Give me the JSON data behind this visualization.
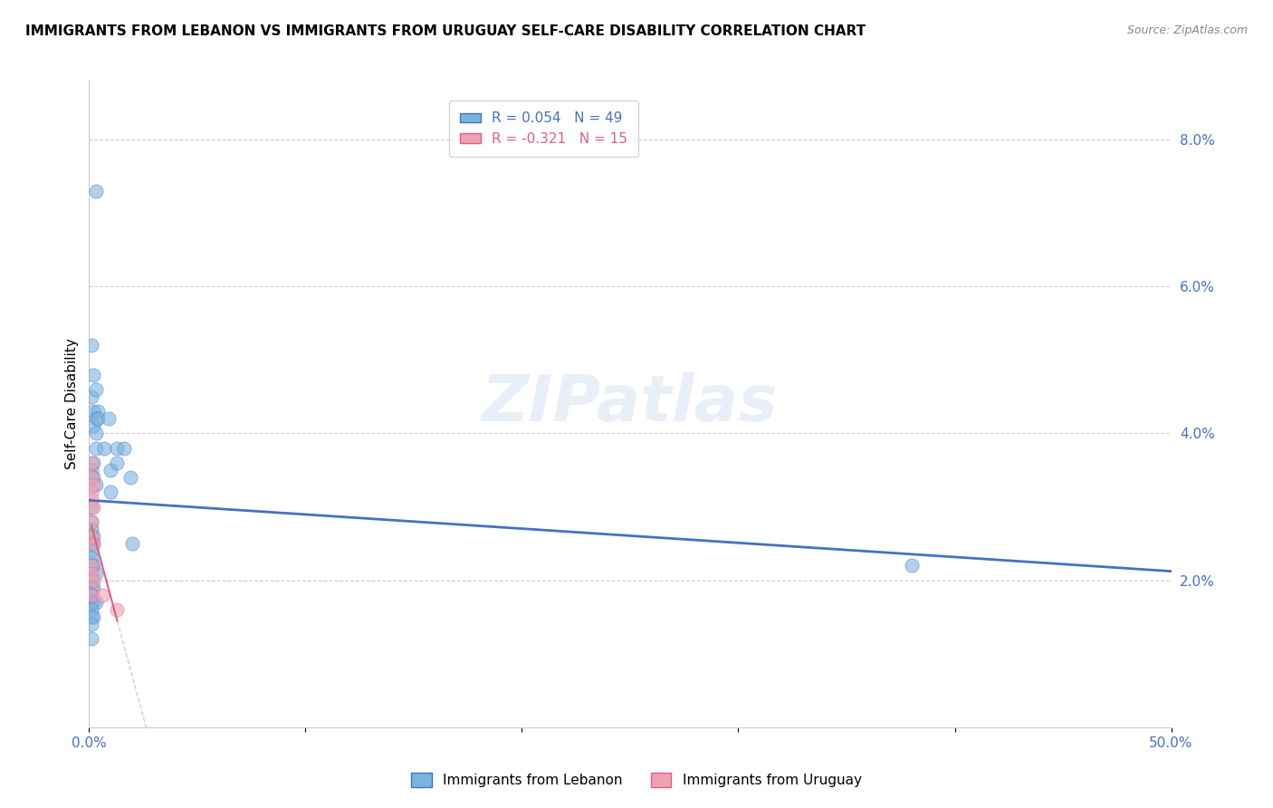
{
  "title": "IMMIGRANTS FROM LEBANON VS IMMIGRANTS FROM URUGUAY SELF-CARE DISABILITY CORRELATION CHART",
  "source": "Source: ZipAtlas.com",
  "ylabel": "Self-Care Disability",
  "xlim": [
    0.0,
    0.5
  ],
  "ylim": [
    0.0,
    0.088
  ],
  "xticks": [
    0.0,
    0.1,
    0.2,
    0.3,
    0.4,
    0.5
  ],
  "xtick_labels": [
    "0.0%",
    "",
    "",
    "",
    "",
    "50.0%"
  ],
  "yticks": [
    0.0,
    0.02,
    0.04,
    0.06,
    0.08
  ],
  "ytick_labels": [
    "",
    "2.0%",
    "4.0%",
    "6.0%",
    "8.0%"
  ],
  "lebanon_color": "#7ab3e0",
  "uruguay_color": "#f0a0b0",
  "trendline_lebanon_color": "#4472c4",
  "trendline_uruguay_color": "#e06080",
  "grid_color": "#cccccc",
  "watermark": "ZIPatlas",
  "lebanon_points": [
    [
      0.001,
      0.052
    ],
    [
      0.002,
      0.043
    ],
    [
      0.003,
      0.073
    ],
    [
      0.001,
      0.045
    ],
    [
      0.002,
      0.048
    ],
    [
      0.003,
      0.046
    ],
    [
      0.003,
      0.042
    ],
    [
      0.002,
      0.041
    ],
    [
      0.004,
      0.043
    ],
    [
      0.003,
      0.038
    ],
    [
      0.003,
      0.04
    ],
    [
      0.002,
      0.036
    ],
    [
      0.001,
      0.035
    ],
    [
      0.002,
      0.034
    ],
    [
      0.003,
      0.033
    ],
    [
      0.004,
      0.042
    ],
    [
      0.001,
      0.03
    ],
    [
      0.001,
      0.028
    ],
    [
      0.001,
      0.027
    ],
    [
      0.002,
      0.026
    ],
    [
      0.001,
      0.025
    ],
    [
      0.002,
      0.025
    ],
    [
      0.001,
      0.024
    ],
    [
      0.001,
      0.023
    ],
    [
      0.001,
      0.022
    ],
    [
      0.002,
      0.022
    ],
    [
      0.003,
      0.021
    ],
    [
      0.001,
      0.02
    ],
    [
      0.001,
      0.019
    ],
    [
      0.002,
      0.019
    ],
    [
      0.001,
      0.018
    ],
    [
      0.001,
      0.017
    ],
    [
      0.002,
      0.017
    ],
    [
      0.003,
      0.017
    ],
    [
      0.001,
      0.016
    ],
    [
      0.001,
      0.015
    ],
    [
      0.002,
      0.015
    ],
    [
      0.001,
      0.014
    ],
    [
      0.007,
      0.038
    ],
    [
      0.009,
      0.042
    ],
    [
      0.01,
      0.035
    ],
    [
      0.01,
      0.032
    ],
    [
      0.013,
      0.038
    ],
    [
      0.013,
      0.036
    ],
    [
      0.016,
      0.038
    ],
    [
      0.019,
      0.034
    ],
    [
      0.02,
      0.025
    ],
    [
      0.38,
      0.022
    ],
    [
      0.001,
      0.012
    ]
  ],
  "uruguay_points": [
    [
      0.001,
      0.036
    ],
    [
      0.001,
      0.034
    ],
    [
      0.001,
      0.032
    ],
    [
      0.001,
      0.031
    ],
    [
      0.002,
      0.033
    ],
    [
      0.002,
      0.03
    ],
    [
      0.001,
      0.028
    ],
    [
      0.001,
      0.026
    ],
    [
      0.002,
      0.025
    ],
    [
      0.001,
      0.022
    ],
    [
      0.001,
      0.021
    ],
    [
      0.002,
      0.02
    ],
    [
      0.001,
      0.018
    ],
    [
      0.006,
      0.018
    ],
    [
      0.013,
      0.016
    ]
  ],
  "r_lebanon": 0.054,
  "n_lebanon": 49,
  "r_uruguay": -0.321,
  "n_uruguay": 15,
  "figsize": [
    14.06,
    8.92
  ],
  "dpi": 100
}
